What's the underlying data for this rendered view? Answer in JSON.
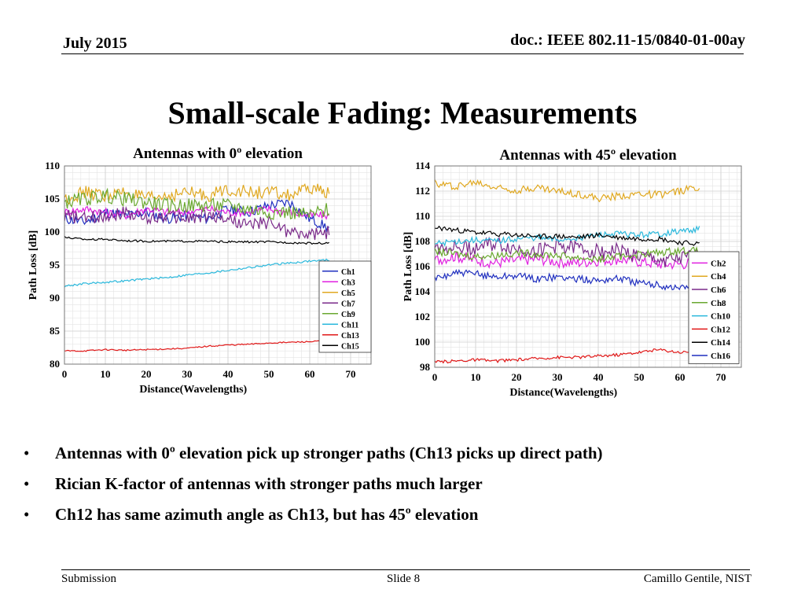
{
  "header": {
    "date": "July 2015",
    "doc": "doc.: IEEE 802.11-15/0840-01-00ay"
  },
  "slide_title": "Small-scale Fading: Measurements",
  "chart_data": [
    {
      "type": "line",
      "title": "Antennas with 0º elevation",
      "xlabel": "Distance(Wavelengths)",
      "ylabel": "Path Loss [dB]",
      "xlim": [
        0,
        75
      ],
      "ylim": [
        80,
        110
      ],
      "xticks": [
        "0",
        "10",
        "20",
        "30",
        "40",
        "50",
        "60",
        "70"
      ],
      "yticks": [
        "80",
        "85",
        "90",
        "95",
        "100",
        "105",
        "110"
      ],
      "grid": true,
      "legend_position": "right",
      "series": [
        {
          "name": "Ch1",
          "color": "#1f2fbf",
          "x": [
            0,
            5,
            10,
            15,
            20,
            25,
            30,
            35,
            40,
            45,
            50,
            55,
            60,
            65
          ],
          "values": [
            102,
            101.5,
            103,
            102.5,
            103,
            102,
            102.5,
            102,
            103.5,
            103,
            104,
            104.5,
            102,
            100.5
          ],
          "noise": 0.8
        },
        {
          "name": "Ch3",
          "color": "#e020e0",
          "x": [
            0,
            5,
            10,
            15,
            20,
            25,
            30,
            35,
            40,
            45,
            50,
            55,
            60,
            65
          ],
          "values": [
            103,
            103.5,
            103,
            102.5,
            103.5,
            103,
            103,
            103.5,
            103,
            103,
            103.5,
            103,
            102.5,
            102.5
          ],
          "noise": 0.6
        },
        {
          "name": "Ch5",
          "color": "#e0a820",
          "x": [
            0,
            5,
            10,
            15,
            20,
            25,
            30,
            35,
            40,
            45,
            50,
            55,
            60,
            65
          ],
          "values": [
            105,
            106,
            105.5,
            106,
            105,
            105.5,
            106,
            105.5,
            106.5,
            106,
            106,
            105.5,
            106.5,
            106
          ],
          "noise": 1.0
        },
        {
          "name": "Ch7",
          "color": "#7a2a8a",
          "x": [
            0,
            5,
            10,
            15,
            20,
            25,
            30,
            35,
            40,
            45,
            50,
            55,
            60,
            65
          ],
          "values": [
            102.5,
            102,
            102.5,
            103,
            102,
            102.5,
            102,
            102.5,
            102,
            101,
            101.5,
            100,
            99.5,
            100
          ],
          "noise": 1.0
        },
        {
          "name": "Ch9",
          "color": "#6aa830",
          "x": [
            0,
            5,
            10,
            15,
            20,
            25,
            30,
            35,
            40,
            45,
            50,
            55,
            60,
            65
          ],
          "values": [
            104.5,
            105,
            105.5,
            105,
            104.5,
            104,
            104,
            104,
            104,
            103.5,
            103,
            103,
            102.5,
            103.5
          ],
          "noise": 1.1
        },
        {
          "name": "Ch11",
          "color": "#2ab8dc",
          "x": [
            0,
            5,
            10,
            15,
            20,
            25,
            30,
            35,
            40,
            45,
            50,
            55,
            60,
            65
          ],
          "values": [
            91.8,
            92.2,
            92.4,
            92.6,
            92.9,
            93.1,
            93.5,
            93.8,
            94.2,
            94.6,
            95,
            95.3,
            95.6,
            95.8
          ],
          "noise": 0.15
        },
        {
          "name": "Ch13",
          "color": "#e01818",
          "x": [
            0,
            5,
            10,
            15,
            20,
            25,
            30,
            35,
            40,
            45,
            50,
            55,
            60,
            65
          ],
          "values": [
            82,
            82,
            82.2,
            82.1,
            82.2,
            82.3,
            82.4,
            82.7,
            82.9,
            83,
            83.2,
            83.3,
            83.4,
            83.5
          ],
          "noise": 0.1
        },
        {
          "name": "Ch15",
          "color": "#000000",
          "x": [
            0,
            5,
            10,
            15,
            20,
            25,
            30,
            35,
            40,
            45,
            50,
            55,
            60,
            65
          ],
          "values": [
            99.2,
            98.9,
            98.9,
            98.7,
            98.6,
            98.6,
            98.6,
            98.6,
            98.5,
            98.5,
            98.5,
            98.4,
            98.3,
            98.3
          ],
          "noise": 0.15
        }
      ]
    },
    {
      "type": "line",
      "title": "Antennas with 45º elevation",
      "xlabel": "Distance(Wavelengths)",
      "ylabel": "Path Loss [dB]",
      "xlim": [
        0,
        75
      ],
      "ylim": [
        98,
        114
      ],
      "xticks": [
        "0",
        "10",
        "20",
        "30",
        "40",
        "50",
        "60",
        "70"
      ],
      "yticks": [
        "98",
        "100",
        "102",
        "104",
        "106",
        "108",
        "110",
        "112",
        "114"
      ],
      "grid": true,
      "legend_position": "right",
      "series": [
        {
          "name": "Ch2",
          "color": "#e020e0",
          "x": [
            0,
            5,
            10,
            15,
            20,
            25,
            30,
            35,
            40,
            45,
            50,
            55,
            60,
            65
          ],
          "values": [
            106.5,
            106.8,
            106.5,
            106.3,
            106.5,
            106.6,
            106.4,
            106.3,
            106.5,
            106.6,
            106.4,
            106.2,
            106.2,
            106.3
          ],
          "noise": 0.45
        },
        {
          "name": "Ch4",
          "color": "#e0a820",
          "x": [
            0,
            5,
            10,
            15,
            20,
            25,
            30,
            35,
            40,
            45,
            50,
            55,
            60,
            65
          ],
          "values": [
            112.6,
            112.4,
            112.7,
            112.3,
            112.1,
            112.3,
            112,
            111.8,
            111.4,
            111.6,
            111.8,
            111.7,
            112,
            112.4
          ],
          "noise": 0.3
        },
        {
          "name": "Ch6",
          "color": "#7a2a8a",
          "x": [
            0,
            5,
            10,
            15,
            20,
            25,
            30,
            35,
            40,
            45,
            50,
            55,
            60,
            65
          ],
          "values": [
            107.5,
            107.6,
            107.5,
            107.8,
            107.4,
            107.3,
            107.6,
            107.5,
            107.2,
            107.3,
            106.8,
            106.5,
            106.6,
            106.9
          ],
          "noise": 0.6
        },
        {
          "name": "Ch8",
          "color": "#6aa830",
          "x": [
            0,
            5,
            10,
            15,
            20,
            25,
            30,
            35,
            40,
            45,
            50,
            55,
            60,
            65
          ],
          "values": [
            107.2,
            107,
            106.8,
            106.9,
            107.1,
            107,
            106.9,
            106.7,
            106.6,
            106.8,
            107,
            107.1,
            107.3,
            107.2
          ],
          "noise": 0.3
        },
        {
          "name": "Ch10",
          "color": "#2ab8dc",
          "x": [
            0,
            5,
            10,
            15,
            20,
            25,
            30,
            35,
            40,
            45,
            50,
            55,
            60,
            65
          ],
          "values": [
            107.8,
            108,
            108.1,
            108,
            108.2,
            108.3,
            108.1,
            108.3,
            108.5,
            108.6,
            108.5,
            108.6,
            108.8,
            109
          ],
          "noise": 0.25
        },
        {
          "name": "Ch12",
          "color": "#e01818",
          "x": [
            0,
            5,
            10,
            15,
            20,
            25,
            30,
            35,
            40,
            45,
            50,
            55,
            60,
            65
          ],
          "values": [
            98.4,
            98.5,
            98.6,
            98.5,
            98.6,
            98.7,
            98.8,
            98.8,
            98.9,
            99,
            99.2,
            99.4,
            99.2,
            99.3
          ],
          "noise": 0.12
        },
        {
          "name": "Ch14",
          "color": "#000000",
          "x": [
            0,
            5,
            10,
            15,
            20,
            25,
            30,
            35,
            40,
            45,
            50,
            55,
            60,
            65
          ],
          "values": [
            109.1,
            108.9,
            108.7,
            108.6,
            108.5,
            108.4,
            108.4,
            108.3,
            108.5,
            108.3,
            108.2,
            108.2,
            107.9,
            107.8
          ],
          "noise": 0.2
        },
        {
          "name": "Ch16",
          "color": "#1f2fbf",
          "x": [
            0,
            5,
            10,
            15,
            20,
            25,
            30,
            35,
            40,
            45,
            50,
            55,
            60,
            65
          ],
          "values": [
            105,
            105.5,
            105.4,
            105.2,
            105.3,
            105,
            105.2,
            105,
            104.9,
            105.1,
            104.7,
            104.5,
            104.3,
            104.7
          ],
          "noise": 0.3
        }
      ]
    }
  ],
  "bullets": [
    "Antennas with 0º elevation pick up stronger paths (Ch13 picks up direct path)",
    "Rician K-factor of antennas with stronger paths much larger",
    "Ch12 has same azimuth angle as Ch13, but has 45º elevation"
  ],
  "footer": {
    "left": "Submission",
    "center": "Slide 8",
    "right": "Camillo Gentile, NIST"
  }
}
